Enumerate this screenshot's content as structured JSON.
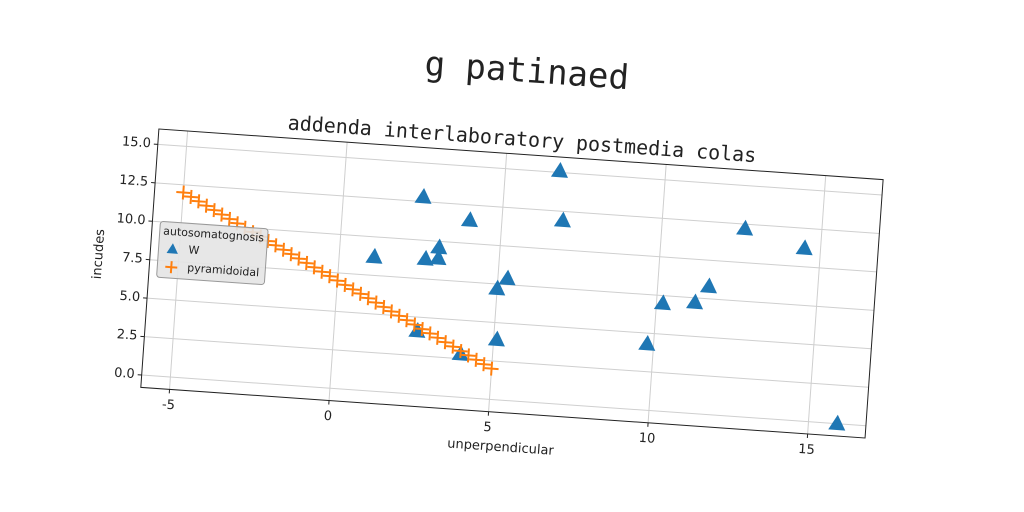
{
  "chart_data": {
    "type": "scatter",
    "suptitle": "g patinaed",
    "title": "addenda interlaboratory postmedia colas",
    "xlabel": "unperpendicular",
    "ylabel": "incudes",
    "legend_title": "autosomatognosis",
    "legend": "upper left",
    "grid": true,
    "xlim": [
      -5.9,
      16.8
    ],
    "ylim": [
      -0.8,
      16.0
    ],
    "xticks": [
      -5,
      0,
      5,
      10,
      15
    ],
    "yticks": [
      {
        "value": 0,
        "label": "0.0"
      },
      2.5,
      {
        "value": 5,
        "label": "5.0"
      },
      7.5,
      {
        "value": 10,
        "label": "10.0"
      },
      12.5,
      {
        "value": 15,
        "label": "15.0"
      }
    ],
    "series": [
      {
        "name": "W",
        "color": "#1f77b4",
        "marker": "triangle",
        "x": [
          2.5,
          6.7,
          6.9,
          4.0,
          1.1,
          3.1,
          2.7,
          3.1,
          5.3,
          5.0,
          5.1,
          2.6,
          4.0,
          9.8,
          10.2,
          11.2,
          11.6,
          12.6,
          14.5,
          15.9
        ],
        "values": [
          12.8,
          15.1,
          11.9,
          11.5,
          8.7,
          9.6,
          8.8,
          8.9,
          7.9,
          7.2,
          3.9,
          4.1,
          2.8,
          4.3,
          7.0,
          7.2,
          8.3,
          12.2,
          11.2,
          0.0
        ]
      },
      {
        "name": "pyramidoidal",
        "color": "#ff7f0e",
        "marker": "plus",
        "x": [
          -5,
          -4.75,
          -4.5,
          -4.25,
          -4,
          -3.75,
          -3.5,
          -3.25,
          -3,
          -2.75,
          -2.5,
          -2.25,
          -2,
          -1.75,
          -1.5,
          -1.25,
          -1,
          -0.75,
          -0.5,
          -0.25,
          0,
          0.25,
          0.5,
          0.75,
          1,
          1.25,
          1.5,
          1.75,
          2,
          2.25,
          2.5,
          2.75,
          3,
          3.25,
          3.5,
          3.75,
          4,
          4.25,
          4.5,
          4.75,
          5
        ],
        "values": [
          12,
          11.75,
          11.5,
          11.25,
          11,
          10.75,
          10.5,
          10.25,
          10,
          9.75,
          9.5,
          9.25,
          9,
          8.75,
          8.5,
          8.25,
          8,
          7.75,
          7.5,
          7.25,
          7,
          6.75,
          6.5,
          6.25,
          6,
          5.75,
          5.5,
          5.25,
          5,
          4.75,
          4.5,
          4.25,
          4,
          3.75,
          3.5,
          3.25,
          3,
          2.75,
          2.5,
          2.25,
          2
        ]
      }
    ]
  }
}
